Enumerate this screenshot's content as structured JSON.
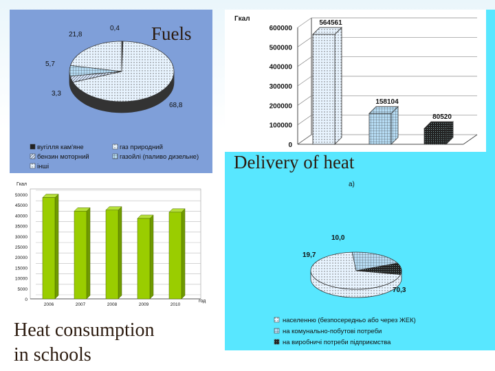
{
  "slide": {
    "fuels_title": "Fuels",
    "delivery_title": "Delivery of heat",
    "schools_title_line1": "Heat consumption",
    "schools_title_line2": "in schools"
  },
  "colors": {
    "fuels_panel": "#7f9fd9",
    "delivery_panel": "#58e7ff",
    "bar_green": "#9acd00"
  },
  "chart_data": [
    {
      "id": "fuels",
      "type": "pie",
      "labels": [
        "вугілля кам'яне",
        "газ природний",
        "бензин моторний",
        "газойлі (паливо дизельне)",
        "інші"
      ],
      "values": [
        0.4,
        68.8,
        3.3,
        5.7,
        21.8
      ],
      "value_labels": [
        "0,4",
        "68,8",
        "3,3",
        "5,7",
        "21,8"
      ],
      "legend": [
        "вугілля кам'яне",
        "газ природний",
        "бензин моторний",
        "газойлі (паливо дизельне)",
        "інші"
      ],
      "legend_placement": "bottom"
    },
    {
      "id": "delivery_bars",
      "type": "bar",
      "ylabel": "Гкал",
      "categories": [
        "населенню",
        "на комунально-побутові потреби",
        "на виробничі потреби підприємства"
      ],
      "values": [
        564561,
        158104,
        80520
      ],
      "value_labels": [
        "564561",
        "158104",
        "80520"
      ],
      "yticks": [
        "0",
        "100000",
        "200000",
        "300000",
        "400000",
        "500000",
        "600000"
      ],
      "ylim": [
        0,
        600000
      ],
      "grid": true
    },
    {
      "id": "delivery_pie",
      "type": "pie",
      "caption": "а)",
      "labels": [
        "населенню (безпосередньо або через ЖЕК)",
        "на комунально-побутові потреби",
        "на виробничі потреби підприємства"
      ],
      "values": [
        70.3,
        19.7,
        10.0
      ],
      "value_labels": [
        "70,3",
        "19,7",
        "10,0"
      ],
      "legend": [
        "населенню (безпосередньо або через ЖЕК)",
        "на комунально-побутові потреби",
        "на виробничі потреби підприємства"
      ],
      "legend_placement": "bottom"
    },
    {
      "id": "schools",
      "type": "bar",
      "ylabel": "Гкал",
      "xlabel": "год",
      "categories": [
        "2006",
        "2007",
        "2008",
        "2009",
        "2010"
      ],
      "values": [
        48500,
        42000,
        42500,
        38500,
        41500
      ],
      "yticks": [
        "0",
        "5000",
        "10000",
        "15000",
        "20000",
        "25000",
        "30000",
        "35000",
        "40000",
        "45000",
        "50000"
      ],
      "ylim": [
        0,
        50000
      ],
      "grid": true
    }
  ]
}
